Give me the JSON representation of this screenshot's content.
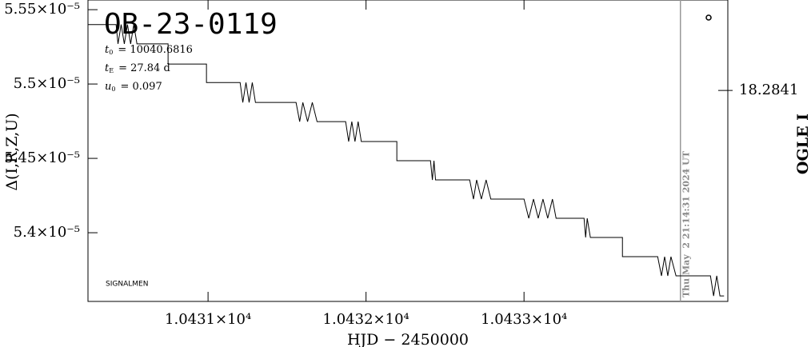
{
  "chart_data": {
    "type": "line",
    "title": "OB-23-0119",
    "params": [
      {
        "symbol": "t",
        "sub": "0",
        "text": "= 10040.6816"
      },
      {
        "symbol": "t",
        "sub": "E",
        "text": "= 27.84 d"
      },
      {
        "symbol": "u",
        "sub": "0",
        "text": "= 0.097"
      }
    ],
    "annotation": "SIGNALMEN",
    "timestamp": "Thu May  2 21:14:31 2024 UT",
    "vline_x": 10433.99,
    "xlabel": "HJD − 2450000",
    "ylabel": "Δ(I,R,Z,U)",
    "y2label": "OGLE I",
    "xlim": [
      10430.24,
      10434.29
    ],
    "xticks": [
      {
        "value": 10431,
        "label": "1.0431×10⁴"
      },
      {
        "value": 10432,
        "label": "1.0432×10⁴"
      },
      {
        "value": 10433,
        "label": "1.0433×10⁴"
      }
    ],
    "ylim": [
      5.3538e-05,
      5.5565e-05
    ],
    "yticks": [
      {
        "value": 5.4e-05,
        "label": "5.4×10⁻⁵"
      },
      {
        "value": 5.45e-05,
        "label": "5.45×10⁻⁵"
      },
      {
        "value": 5.5e-05,
        "label": "5.5×10⁻⁵"
      },
      {
        "value": 5.55e-05,
        "label": "5.55×10⁻⁵"
      }
    ],
    "y2lim": [
      18.2848,
      18.2838
    ],
    "y2ticks": [
      18.2841
    ],
    "x": [
      10430.24,
      10430.418,
      10430.43,
      10430.45,
      10430.47,
      10430.49,
      10430.51,
      10430.53,
      10430.55,
      10430.57,
      10430.747,
      10430.747,
      10430.99,
      10430.99,
      10431.203,
      10431.22,
      10431.24,
      10431.26,
      10431.28,
      10431.3,
      10431.329,
      10431.557,
      10431.58,
      10431.6,
      10431.63,
      10431.66,
      10431.69,
      10431.709,
      10431.871,
      10431.89,
      10431.91,
      10431.93,
      10431.95,
      10431.97,
      10431.987,
      10432.195,
      10432.195,
      10432.408,
      10432.42,
      10432.43,
      10432.44,
      10432.453,
      10432.656,
      10432.68,
      10432.7,
      10432.73,
      10432.76,
      10432.79,
      10432.813,
      10433.0,
      10433.03,
      10433.06,
      10433.09,
      10433.12,
      10433.15,
      10433.18,
      10433.203,
      10433.38,
      10433.39,
      10433.4,
      10433.42,
      10433.623,
      10433.623,
      10433.846,
      10433.87,
      10433.89,
      10433.91,
      10433.93,
      10433.962,
      10434.18,
      10434.2,
      10434.22,
      10434.24,
      10434.266
    ],
    "series": [
      {
        "name": "Δ",
        "color": "#000000",
        "values": [
          5.54e-05,
          5.54e-05,
          5.527e-05,
          5.54e-05,
          5.527e-05,
          5.54e-05,
          5.527e-05,
          5.54e-05,
          5.527e-05,
          5.527e-05,
          5.527e-05,
          5.5134e-05,
          5.5134e-05,
          5.501e-05,
          5.501e-05,
          5.4876e-05,
          5.501e-05,
          5.4876e-05,
          5.501e-05,
          5.4876e-05,
          5.4876e-05,
          5.4876e-05,
          5.4747e-05,
          5.4876e-05,
          5.4747e-05,
          5.4876e-05,
          5.4747e-05,
          5.4747e-05,
          5.4747e-05,
          5.4613e-05,
          5.4747e-05,
          5.4613e-05,
          5.4747e-05,
          5.4613e-05,
          5.4613e-05,
          5.4613e-05,
          5.4484e-05,
          5.4484e-05,
          5.4355e-05,
          5.4484e-05,
          5.4355e-05,
          5.4355e-05,
          5.4355e-05,
          5.4226e-05,
          5.4355e-05,
          5.4226e-05,
          5.4355e-05,
          5.4226e-05,
          5.4226e-05,
          5.4226e-05,
          5.4097e-05,
          5.4226e-05,
          5.4097e-05,
          5.4226e-05,
          5.4097e-05,
          5.4226e-05,
          5.4097e-05,
          5.4097e-05,
          5.3968e-05,
          5.4097e-05,
          5.3968e-05,
          5.3968e-05,
          5.3839e-05,
          5.3839e-05,
          5.371e-05,
          5.3839e-05,
          5.371e-05,
          5.3839e-05,
          5.371e-05,
          5.371e-05,
          5.3575e-05,
          5.371e-05,
          5.3575e-05,
          5.3575e-05
        ]
      }
    ]
  }
}
